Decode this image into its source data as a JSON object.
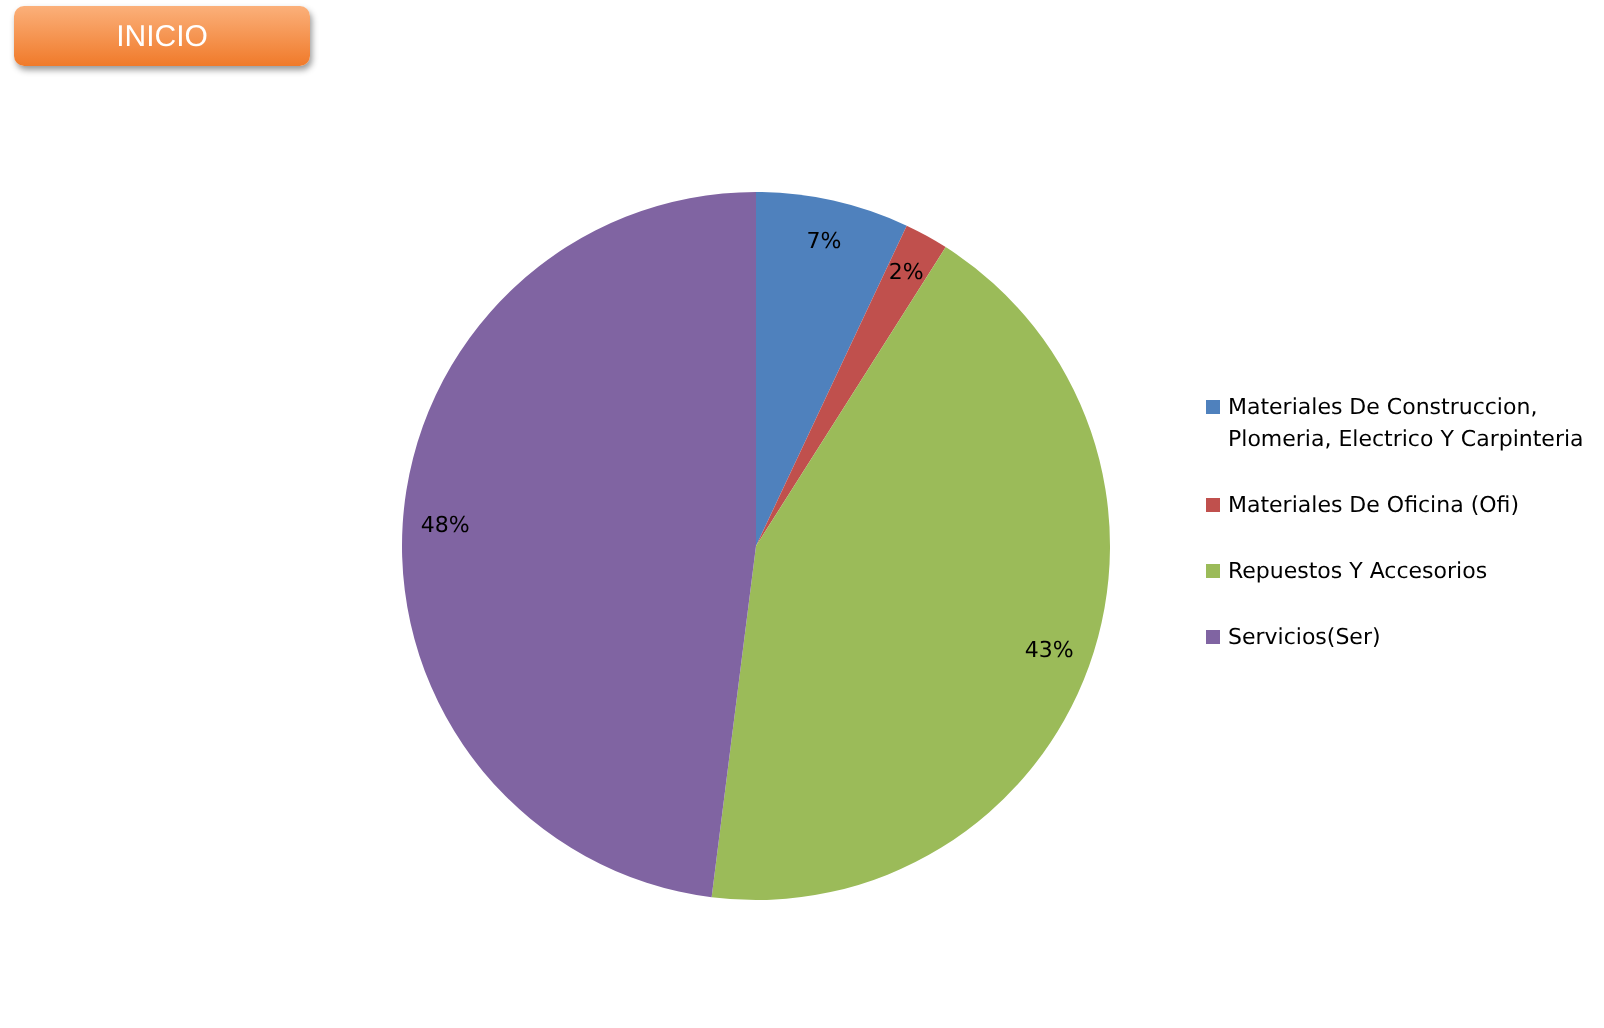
{
  "chart_data": {
    "type": "pie",
    "categories": [
      "Materiales De Construccion, Plomeria, Electrico Y Carpinteria",
      "Materiales De Oficina (Ofi)",
      "Repuestos Y Accesorios",
      "Servicios(Ser)"
    ],
    "values": [
      7,
      2,
      43,
      48
    ],
    "colors": [
      "#4f81bd",
      "#c0504d",
      "#9bbb59",
      "#8064a2"
    ],
    "value_labels": [
      "7%",
      "2%",
      "43%",
      "48%"
    ],
    "legend": "right",
    "annotations": [
      "INICIO"
    ]
  }
}
